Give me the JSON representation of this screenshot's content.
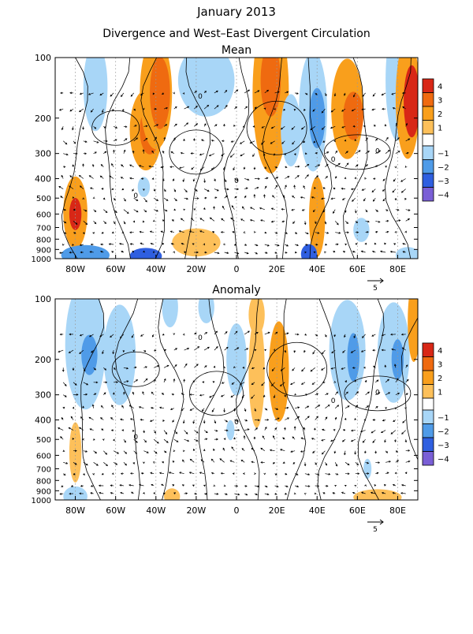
{
  "title": "January 2013",
  "subtitle": "Divergence and West–East Divergent Circulation",
  "colors": {
    "neg4": "#7a5fd6",
    "neg3": "#2f5fe0",
    "neg2": "#4f9be8",
    "neg1": "#a8d6f7",
    "pos1": "#fdc05a",
    "pos2": "#f99f1c",
    "pos3": "#ef6a10",
    "pos4": "#d82716"
  },
  "chart_data": [
    {
      "type": "heatmap",
      "panel": "mean",
      "title": "Mean",
      "x_ticks": [
        "80W",
        "60W",
        "40W",
        "20W",
        "0",
        "20E",
        "40E",
        "60E",
        "80E"
      ],
      "x_tick_values": [
        -80,
        -60,
        -40,
        -20,
        0,
        20,
        40,
        60,
        80
      ],
      "y_ticks": [
        100,
        200,
        300,
        400,
        500,
        600,
        700,
        800,
        900,
        1000
      ],
      "xlim": [
        -90,
        90
      ],
      "ylim": [
        1000,
        100
      ],
      "yscale": "log",
      "zero_contour_label": "0",
      "vector_ref_label": "5",
      "colorbar": {
        "labels": [
          "4",
          "3",
          "2",
          "1",
          "−1",
          "−2",
          "−3",
          "−4"
        ],
        "levels": [
          4,
          3,
          2,
          1,
          -1,
          -2,
          -3,
          -4
        ]
      },
      "blobs": [
        {
          "lon": -70,
          "p": 140,
          "rx": 6,
          "rp": 0.22,
          "level": -1
        },
        {
          "lon": -45,
          "p": 230,
          "rx": 8,
          "rp": 0.2,
          "level": 2
        },
        {
          "lon": -43,
          "p": 230,
          "rx": 5,
          "rp": 0.12,
          "level": 3
        },
        {
          "lon": -40,
          "p": 150,
          "rx": 8,
          "rp": 0.28,
          "level": 2
        },
        {
          "lon": -38,
          "p": 150,
          "rx": 5,
          "rp": 0.18,
          "level": 3
        },
        {
          "lon": -15,
          "p": 130,
          "rx": 14,
          "rp": 0.18,
          "level": -1
        },
        {
          "lon": 17,
          "p": 150,
          "rx": 9,
          "rp": 0.4,
          "level": 2
        },
        {
          "lon": 17,
          "p": 130,
          "rx": 5,
          "rp": 0.18,
          "level": 3
        },
        {
          "lon": 27,
          "p": 230,
          "rx": 5,
          "rp": 0.18,
          "level": -1
        },
        {
          "lon": 38,
          "p": 185,
          "rx": 7,
          "rp": 0.3,
          "level": -1
        },
        {
          "lon": 40,
          "p": 200,
          "rx": 4,
          "rp": 0.15,
          "level": -2
        },
        {
          "lon": 55,
          "p": 180,
          "rx": 8,
          "rp": 0.25,
          "level": 2
        },
        {
          "lon": 58,
          "p": 195,
          "rx": 5,
          "rp": 0.12,
          "level": 3
        },
        {
          "lon": 80,
          "p": 130,
          "rx": 6,
          "rp": 0.3,
          "level": -1
        },
        {
          "lon": 85,
          "p": 160,
          "rx": 6,
          "rp": 0.3,
          "level": 2
        },
        {
          "lon": 87,
          "p": 165,
          "rx": 4,
          "rp": 0.18,
          "level": 4
        },
        {
          "lon": -80,
          "p": 590,
          "rx": 6,
          "rp": 0.18,
          "level": 2
        },
        {
          "lon": -80,
          "p": 600,
          "rx": 3,
          "rp": 0.08,
          "level": 4
        },
        {
          "lon": -46,
          "p": 440,
          "rx": 3,
          "rp": 0.05,
          "level": -1
        },
        {
          "lon": 40,
          "p": 620,
          "rx": 4,
          "rp": 0.2,
          "level": 2
        },
        {
          "lon": 62,
          "p": 720,
          "rx": 4,
          "rp": 0.06,
          "level": -1
        },
        {
          "lon": -75,
          "p": 960,
          "rx": 12,
          "rp": 0.05,
          "level": -2
        },
        {
          "lon": -45,
          "p": 970,
          "rx": 8,
          "rp": 0.04,
          "level": -3
        },
        {
          "lon": -20,
          "p": 830,
          "rx": 12,
          "rp": 0.07,
          "level": 1
        },
        {
          "lon": 36,
          "p": 950,
          "rx": 4,
          "rp": 0.05,
          "level": -3
        },
        {
          "lon": 85,
          "p": 960,
          "rx": 6,
          "rp": 0.04,
          "level": -1
        }
      ]
    },
    {
      "type": "heatmap",
      "panel": "anomaly",
      "title": "Anomaly",
      "x_ticks": [
        "80W",
        "60W",
        "40W",
        "20W",
        "0",
        "20E",
        "40E",
        "60E",
        "80E"
      ],
      "x_tick_values": [
        -80,
        -60,
        -40,
        -20,
        0,
        20,
        40,
        60,
        80
      ],
      "y_ticks": [
        100,
        200,
        300,
        400,
        500,
        600,
        700,
        800,
        900,
        1000
      ],
      "xlim": [
        -90,
        90
      ],
      "ylim": [
        1000,
        100
      ],
      "yscale": "log",
      "zero_contour_label": "0",
      "vector_ref_label": "5",
      "colorbar": {
        "labels": [
          "4",
          "3",
          "2",
          "1",
          "−1",
          "−2",
          "−3",
          "−4"
        ],
        "levels": [
          4,
          3,
          2,
          1,
          -1,
          -2,
          -3,
          -4
        ]
      },
      "blobs": [
        {
          "lon": -75,
          "p": 170,
          "rx": 10,
          "rp": 0.32,
          "level": -1
        },
        {
          "lon": -73,
          "p": 190,
          "rx": 4,
          "rp": 0.1,
          "level": -2
        },
        {
          "lon": -58,
          "p": 190,
          "rx": 8,
          "rp": 0.25,
          "level": -1
        },
        {
          "lon": -33,
          "p": 110,
          "rx": 4,
          "rp": 0.1,
          "level": -1
        },
        {
          "lon": -15,
          "p": 110,
          "rx": 4,
          "rp": 0.08,
          "level": -1
        },
        {
          "lon": 0,
          "p": 200,
          "rx": 5,
          "rp": 0.18,
          "level": -1
        },
        {
          "lon": 10,
          "p": 230,
          "rx": 4,
          "rp": 0.28,
          "level": 1
        },
        {
          "lon": 21,
          "p": 230,
          "rx": 5,
          "rp": 0.25,
          "level": 2
        },
        {
          "lon": 10,
          "p": 120,
          "rx": 4,
          "rp": 0.1,
          "level": 1
        },
        {
          "lon": 55,
          "p": 180,
          "rx": 9,
          "rp": 0.25,
          "level": -1
        },
        {
          "lon": 58,
          "p": 195,
          "rx": 3,
          "rp": 0.12,
          "level": -2
        },
        {
          "lon": 78,
          "p": 185,
          "rx": 8,
          "rp": 0.25,
          "level": -1
        },
        {
          "lon": 80,
          "p": 200,
          "rx": 3,
          "rp": 0.1,
          "level": -2
        },
        {
          "lon": 88,
          "p": 130,
          "rx": 3,
          "rp": 0.2,
          "level": 2
        },
        {
          "lon": -80,
          "p": 580,
          "rx": 3,
          "rp": 0.15,
          "level": 1
        },
        {
          "lon": -3,
          "p": 450,
          "rx": 2,
          "rp": 0.05,
          "level": -1
        },
        {
          "lon": 65,
          "p": 700,
          "rx": 2,
          "rp": 0.05,
          "level": -1
        },
        {
          "lon": -80,
          "p": 960,
          "rx": 6,
          "rp": 0.05,
          "level": -1
        },
        {
          "lon": -32,
          "p": 960,
          "rx": 4,
          "rp": 0.04,
          "level": 1
        },
        {
          "lon": 70,
          "p": 970,
          "rx": 12,
          "rp": 0.04,
          "level": 1
        }
      ]
    }
  ]
}
